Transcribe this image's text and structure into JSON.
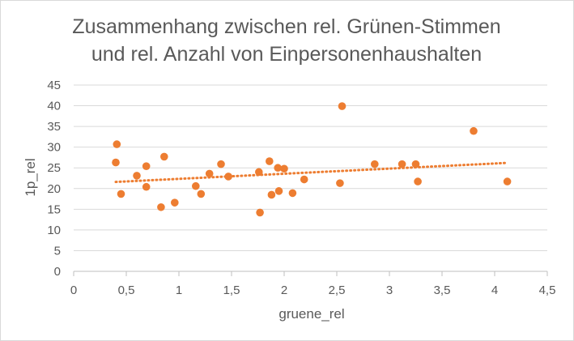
{
  "chart_data": {
    "type": "scatter",
    "title_lines": [
      "Zusammenhang zwischen rel. Grünen-Stimmen",
      "und rel. Anzahl von Einpersonenhaushalten"
    ],
    "xlabel": "gruene_rel",
    "ylabel": "1p_rel",
    "xlim": [
      0,
      4.5
    ],
    "ylim": [
      0,
      45
    ],
    "x_ticks": [
      "0",
      "0,5",
      "1",
      "1,5",
      "2",
      "2,5",
      "3",
      "3,5",
      "4",
      "4,5"
    ],
    "y_ticks": [
      "0",
      "5",
      "10",
      "15",
      "20",
      "25",
      "30",
      "35",
      "40",
      "45"
    ],
    "grid": "horizontal",
    "point_color": "#ED7D31",
    "trendline": {
      "type": "linear",
      "x_start": 0.4,
      "x_end": 4.12,
      "y_start": 21.6,
      "y_end": 26.2,
      "style": "dotted",
      "color": "#ED7D31"
    },
    "points": [
      {
        "x": 0.4,
        "y": 26.3
      },
      {
        "x": 0.41,
        "y": 30.7
      },
      {
        "x": 0.45,
        "y": 18.7
      },
      {
        "x": 0.6,
        "y": 23.1
      },
      {
        "x": 0.69,
        "y": 25.4
      },
      {
        "x": 0.69,
        "y": 20.4
      },
      {
        "x": 0.83,
        "y": 15.5
      },
      {
        "x": 0.86,
        "y": 27.7
      },
      {
        "x": 0.96,
        "y": 16.6
      },
      {
        "x": 1.16,
        "y": 20.6
      },
      {
        "x": 1.21,
        "y": 18.7
      },
      {
        "x": 1.29,
        "y": 23.6
      },
      {
        "x": 1.4,
        "y": 25.9
      },
      {
        "x": 1.47,
        "y": 22.9
      },
      {
        "x": 1.76,
        "y": 24.0
      },
      {
        "x": 1.77,
        "y": 14.2
      },
      {
        "x": 1.86,
        "y": 26.6
      },
      {
        "x": 1.88,
        "y": 18.5
      },
      {
        "x": 1.94,
        "y": 25.0
      },
      {
        "x": 1.95,
        "y": 19.4
      },
      {
        "x": 2.0,
        "y": 24.8
      },
      {
        "x": 2.08,
        "y": 18.9
      },
      {
        "x": 2.19,
        "y": 22.2
      },
      {
        "x": 2.53,
        "y": 21.3
      },
      {
        "x": 2.55,
        "y": 39.9
      },
      {
        "x": 2.86,
        "y": 25.9
      },
      {
        "x": 3.12,
        "y": 25.9
      },
      {
        "x": 3.25,
        "y": 25.9
      },
      {
        "x": 3.27,
        "y": 21.7
      },
      {
        "x": 3.8,
        "y": 33.9
      },
      {
        "x": 4.12,
        "y": 21.7
      }
    ]
  }
}
